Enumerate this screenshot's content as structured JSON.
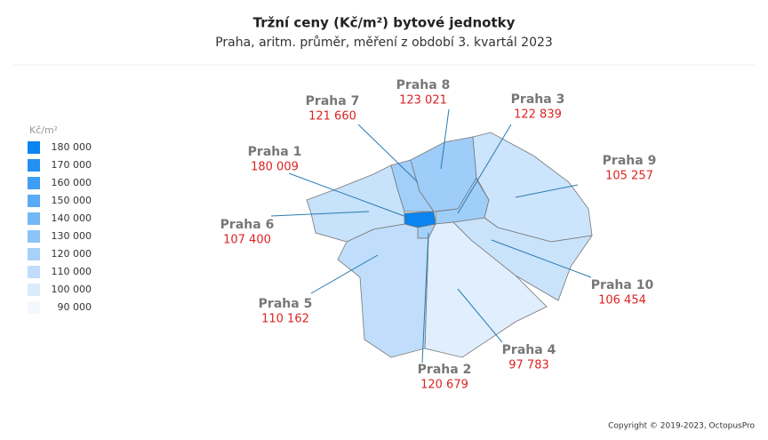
{
  "chart_data": {
    "type": "choropleth",
    "title": "Tržní ceny  (Kč/m²) bytové jednotky",
    "subtitle": "Praha,  aritm. průměr,  měření z období 3. kvartál 2023",
    "legend_title": "Kč/m²",
    "clim": [
      90000,
      180000
    ],
    "color_range": [
      "#f4f8fe",
      "#0a84f0"
    ],
    "legend_ticks": [
      {
        "value": 180000,
        "label": "180 000"
      },
      {
        "value": 170000,
        "label": "170 000"
      },
      {
        "value": 160000,
        "label": "160 000"
      },
      {
        "value": 150000,
        "label": "150 000"
      },
      {
        "value": 140000,
        "label": "140 000"
      },
      {
        "value": 130000,
        "label": "130 000"
      },
      {
        "value": 120000,
        "label": "120 000"
      },
      {
        "value": 110000,
        "label": "110 000"
      },
      {
        "value": 100000,
        "label": "100 000"
      },
      {
        "value": 90000,
        "label": "90 000"
      }
    ],
    "categories": [
      "Praha 1",
      "Praha 2",
      "Praha 3",
      "Praha 4",
      "Praha 5",
      "Praha 6",
      "Praha 7",
      "Praha 8",
      "Praha 9",
      "Praha 10"
    ],
    "values": [
      180009,
      120679,
      122839,
      97783,
      110162,
      107400,
      121660,
      123021,
      105257,
      106454
    ],
    "value_labels": [
      "180 009",
      "120 679",
      "122 839",
      "97 783",
      "110 162",
      "107 400",
      "121 660",
      "123 021",
      "105 257",
      "106 454"
    ],
    "copyright": "Copyright © 2019-2023, OctopusPro"
  }
}
